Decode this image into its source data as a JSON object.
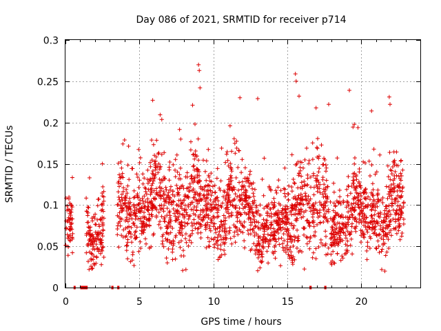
{
  "chart_data": {
    "type": "scatter",
    "title": "Day 086 of 2021, SRMTID for receiver p714",
    "xlabel": "GPS time / hours",
    "ylabel": "SRMTID / TECUs",
    "xlim": [
      0,
      24
    ],
    "ylim": [
      0,
      0.3
    ],
    "x_ticks": [
      0,
      5,
      10,
      15,
      20
    ],
    "x_tick_labels": [
      "0",
      "5",
      "10",
      "15",
      "20"
    ],
    "y_ticks": [
      0,
      0.05,
      0.1,
      0.15,
      0.2,
      0.25,
      0.3
    ],
    "y_tick_labels": [
      "0",
      "0.05",
      "0.1",
      "0.15",
      "0.2",
      "0.25",
      "0.3"
    ],
    "grid": true,
    "marker": "+",
    "color": "#dd0000",
    "segments": [
      {
        "start": 0.0,
        "end": 0.5,
        "center": 0.068,
        "spread": 0.018
      },
      {
        "start": 1.4,
        "end": 2.6,
        "center": 0.068,
        "spread": 0.02
      },
      {
        "start": 3.5,
        "end": 6.0,
        "center": 0.095,
        "spread": 0.025
      },
      {
        "start": 6.0,
        "end": 9.5,
        "center": 0.1,
        "spread": 0.028
      },
      {
        "start": 9.5,
        "end": 13.0,
        "center": 0.095,
        "spread": 0.025
      },
      {
        "start": 13.0,
        "end": 15.3,
        "center": 0.07,
        "spread": 0.02
      },
      {
        "start": 15.3,
        "end": 16.6,
        "center": 0.1,
        "spread": 0.03
      },
      {
        "start": 16.7,
        "end": 17.8,
        "center": 0.095,
        "spread": 0.028
      },
      {
        "start": 17.9,
        "end": 19.0,
        "center": 0.075,
        "spread": 0.02
      },
      {
        "start": 19.0,
        "end": 22.9,
        "center": 0.095,
        "spread": 0.025
      }
    ],
    "peaks": [
      {
        "x": 5.9,
        "y": 0.227
      },
      {
        "x": 8.6,
        "y": 0.221
      },
      {
        "x": 9.0,
        "y": 0.27
      },
      {
        "x": 9.05,
        "y": 0.263
      },
      {
        "x": 9.1,
        "y": 0.242
      },
      {
        "x": 11.8,
        "y": 0.23
      },
      {
        "x": 13.0,
        "y": 0.229
      },
      {
        "x": 15.55,
        "y": 0.259
      },
      {
        "x": 15.6,
        "y": 0.25
      },
      {
        "x": 15.8,
        "y": 0.232
      },
      {
        "x": 17.8,
        "y": 0.222
      },
      {
        "x": 19.2,
        "y": 0.239
      },
      {
        "x": 20.7,
        "y": 0.214
      },
      {
        "x": 21.9,
        "y": 0.231
      },
      {
        "x": 21.95,
        "y": 0.222
      },
      {
        "x": 2.5,
        "y": 0.15
      },
      {
        "x": 1.6,
        "y": 0.022
      },
      {
        "x": 21.6,
        "y": 0.02
      }
    ],
    "zero_markers": [
      {
        "start": 0.55,
        "end": 0.6
      },
      {
        "start": 1.0,
        "end": 1.5
      },
      {
        "start": 3.1,
        "end": 3.25
      },
      {
        "start": 3.5,
        "end": 3.65
      },
      {
        "start": 16.5,
        "end": 16.65
      },
      {
        "start": 17.5,
        "end": 17.65
      }
    ]
  }
}
